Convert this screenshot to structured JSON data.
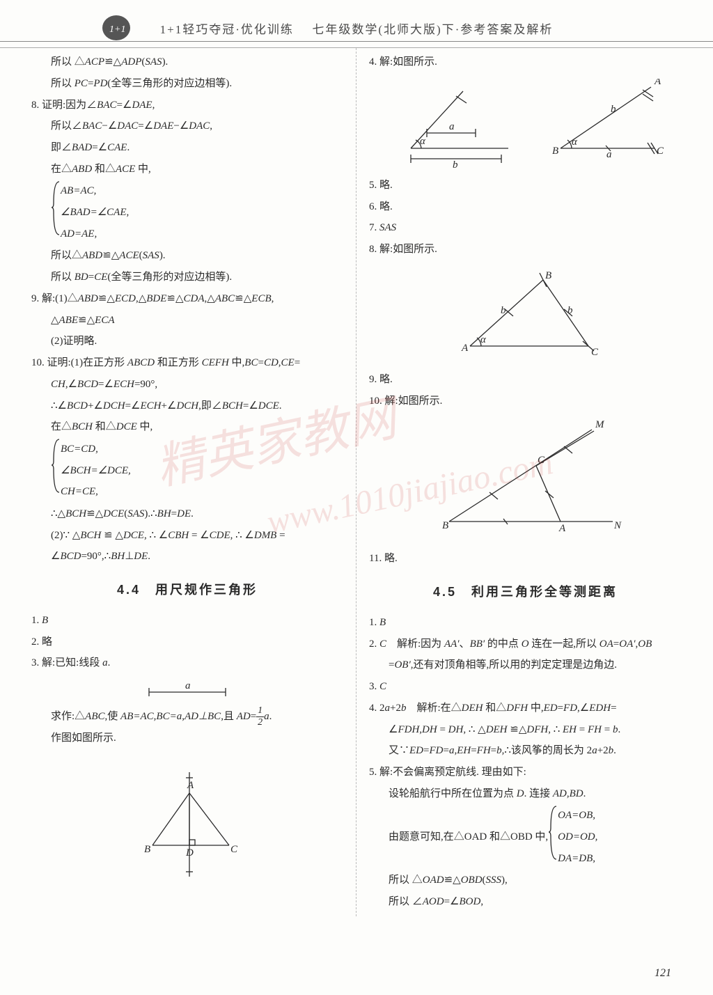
{
  "header": {
    "title_left": "1+1轻巧夺冠·优化训练",
    "title_right": "七年级数学(北师大版)下·参考答案及解析"
  },
  "left_column": {
    "lines": [
      {
        "cls": "indent",
        "text": "所以 △ACP≌△ADP(SAS)."
      },
      {
        "cls": "indent",
        "text": "所以 PC=PD(全等三角形的对应边相等)."
      },
      {
        "cls": "",
        "text": "8. 证明:因为∠BAC=∠DAE,"
      },
      {
        "cls": "indent",
        "text": "所以∠BAC−∠DAC=∠DAE−∠DAC,"
      },
      {
        "cls": "indent",
        "text": "即∠BAD=∠CAE."
      },
      {
        "cls": "indent",
        "text": "在△ABD 和△ACE 中,"
      },
      {
        "cls": "brace",
        "items": [
          "AB=AC,",
          "∠BAD=∠CAE,",
          "AD=AE,"
        ]
      },
      {
        "cls": "indent",
        "text": "所以△ABD≌△ACE(SAS)."
      },
      {
        "cls": "indent",
        "text": "所以 BD=CE(全等三角形的对应边相等)."
      },
      {
        "cls": "",
        "text": "9. 解:(1)△ABD≌△ECD,△BDE≌△CDA,△ABC≌△ECB,"
      },
      {
        "cls": "indent",
        "text": "△ABE≌△ECA"
      },
      {
        "cls": "indent",
        "text": "(2)证明略."
      },
      {
        "cls": "",
        "text": "10. 证明:(1)在正方形 ABCD 和正方形 CEFH 中,BC=CD,CE="
      },
      {
        "cls": "indent",
        "text": "CH,∠BCD=∠ECH=90°,"
      },
      {
        "cls": "indent",
        "text": "∴∠BCD+∠DCH=∠ECH+∠DCH,即∠BCH=∠DCE."
      },
      {
        "cls": "indent",
        "text": "在△BCH 和△DCE 中,"
      },
      {
        "cls": "brace",
        "items": [
          "BC=CD,",
          "∠BCH=∠DCE,",
          "CH=CE,"
        ]
      },
      {
        "cls": "indent",
        "text": "∴△BCH≌△DCE(SAS).∴BH=DE."
      },
      {
        "cls": "indent",
        "text": "(2)∵ △BCH ≌ △DCE, ∴ ∠CBH = ∠CDE, ∴ ∠DMB ="
      },
      {
        "cls": "indent",
        "text": "∠BCD=90°,∴BH⊥DE."
      }
    ],
    "section_title": "4.4　用尺规作三角形",
    "lines2": [
      {
        "cls": "",
        "text": "1. B"
      },
      {
        "cls": "",
        "text": "2. 略"
      },
      {
        "cls": "",
        "text": "3. 解:已知:线段 a."
      },
      {
        "cls": "figure",
        "svg": "segment_a"
      },
      {
        "cls": "indent",
        "html": "求作:△<span class='italic'>ABC</span>,使 <span class='italic'>AB=AC</span>,<span class='italic'>BC=a</span>,<span class='italic'>AD⊥BC</span>,且 <span class='italic'>AD</span>=<span class='frac'><span class='num'>1</span><span class='den'>2</span></span><span class='italic'>a</span>."
      },
      {
        "cls": "indent",
        "text": "作图如图所示."
      },
      {
        "cls": "figure",
        "svg": "triangle_bdc"
      }
    ]
  },
  "right_column": {
    "lines": [
      {
        "cls": "",
        "text": "4. 解:如图所示."
      },
      {
        "cls": "figure",
        "svg": "fig_4_two"
      },
      {
        "cls": "",
        "text": "5. 略."
      },
      {
        "cls": "",
        "text": "6. 略."
      },
      {
        "cls": "",
        "text": "7. SAS"
      },
      {
        "cls": "",
        "text": "8. 解:如图所示."
      },
      {
        "cls": "figure",
        "svg": "fig_8_triangle"
      },
      {
        "cls": "",
        "text": "9. 略."
      },
      {
        "cls": "",
        "text": "10. 解:如图所示."
      },
      {
        "cls": "figure",
        "svg": "fig_10_triangle"
      },
      {
        "cls": "",
        "text": "11. 略."
      }
    ],
    "section_title": "4.5　利用三角形全等测距离",
    "lines2": [
      {
        "cls": "",
        "text": "1. B"
      },
      {
        "cls": "",
        "text": "2. C　解析:因为 AA′、BB′ 的中点 O 连在一起,所以 OA=OA′,OB"
      },
      {
        "cls": "indent",
        "text": "=OB′,还有对顶角相等,所以用的判定定理是边角边."
      },
      {
        "cls": "",
        "text": "3. C"
      },
      {
        "cls": "",
        "text": "4. 2a+2b　解析:在△DEH 和△DFH 中,ED=FD,∠EDH="
      },
      {
        "cls": "indent",
        "text": "∠FDH,DH = DH, ∴ △DEH ≌△DFH, ∴ EH = FH = b."
      },
      {
        "cls": "indent",
        "text": "又∵ED=FD=a,EH=FH=b,∴该风筝的周长为 2a+2b."
      },
      {
        "cls": "",
        "text": "5. 解:不会偏离预定航线. 理由如下:"
      },
      {
        "cls": "indent",
        "text": "设轮船航行中所在位置为点 D. 连接 AD,BD."
      },
      {
        "cls": "brace-right",
        "prefix": "由题意可知,在△OAD 和△OBD 中,",
        "items": [
          "OA=OB,",
          "OD=OD,",
          "DA=DB,"
        ]
      },
      {
        "cls": "indent",
        "text": "所以 △OAD≌△OBD(SSS),"
      },
      {
        "cls": "indent",
        "text": "所以 ∠AOD=∠BOD,"
      }
    ]
  },
  "page_number": "121",
  "svg_style": {
    "stroke": "#2a2a2a",
    "text_color": "#2a2a2a",
    "font": "italic 16px Times New Roman"
  }
}
